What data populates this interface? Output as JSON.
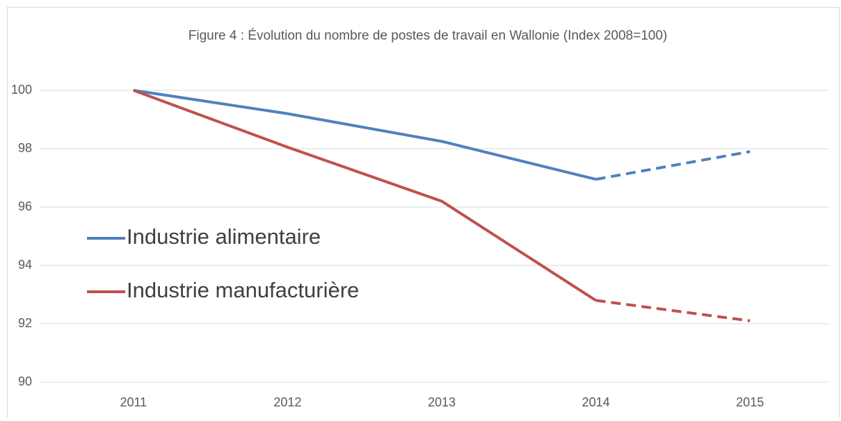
{
  "chart_data": {
    "type": "line",
    "title": "Figure 4 : Évolution du nombre de postes de travail en Wallonie (Index 2008=100)",
    "categories": [
      "2011",
      "2012",
      "2013",
      "2014",
      "2015"
    ],
    "series": [
      {
        "name": "Industrie alimentaire",
        "color": "#4f81bd",
        "values": [
          100,
          99.2,
          98.25,
          96.95,
          97.9
        ]
      },
      {
        "name": "Industrie manufacturière",
        "color": "#c0504d",
        "values": [
          100,
          98.05,
          96.2,
          92.8,
          92.1
        ]
      }
    ],
    "dashed_segments": [
      3
    ],
    "ylim": [
      90,
      100
    ],
    "yticks": [
      90,
      92,
      94,
      96,
      98,
      100
    ],
    "grid": true,
    "legend": "left"
  }
}
